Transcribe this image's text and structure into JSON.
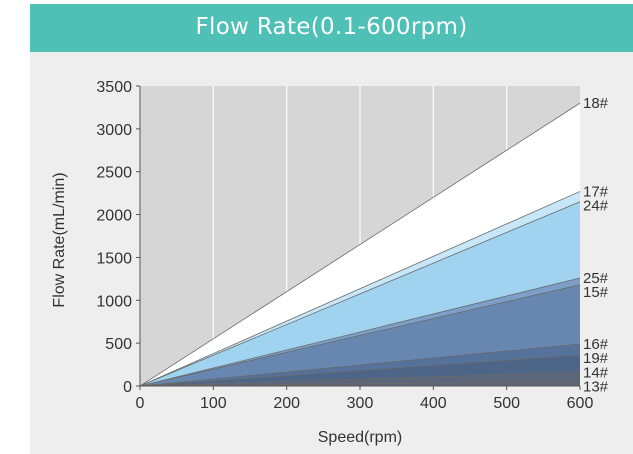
{
  "chart_data": {
    "type": "area",
    "title": "Flow Rate(0.1-600rpm)",
    "xlabel": "Speed(rpm)",
    "ylabel": "Flow Rate(mL/min)",
    "xlim": [
      0,
      600
    ],
    "ylim": [
      0,
      3500
    ],
    "xticks": [
      0,
      100,
      200,
      300,
      400,
      500,
      600
    ],
    "yticks": [
      0,
      500,
      1000,
      1500,
      2000,
      2500,
      3000,
      3500
    ],
    "x": [
      0,
      600
    ],
    "grid": "vertical",
    "series": [
      {
        "name": "18#",
        "values": [
          0,
          3300
        ],
        "color": "#ffffff"
      },
      {
        "name": "17#",
        "values": [
          0,
          2270
        ],
        "color": "#c7e6f7"
      },
      {
        "name": "24#",
        "values": [
          0,
          2150
        ],
        "color": "#9fd3ef"
      },
      {
        "name": "25#",
        "values": [
          0,
          1260
        ],
        "color": "#7b9fc6"
      },
      {
        "name": "15#",
        "values": [
          0,
          1180
        ],
        "color": "#6887b0"
      },
      {
        "name": "16#",
        "values": [
          0,
          490
        ],
        "color": "#55729a"
      },
      {
        "name": "19#",
        "values": [
          0,
          360
        ],
        "color": "#4d6587"
      },
      {
        "name": "14#",
        "values": [
          0,
          160
        ],
        "color": "#5b6779"
      },
      {
        "name": "13#",
        "values": [
          0,
          50
        ],
        "color": "#5f6673"
      }
    ]
  }
}
